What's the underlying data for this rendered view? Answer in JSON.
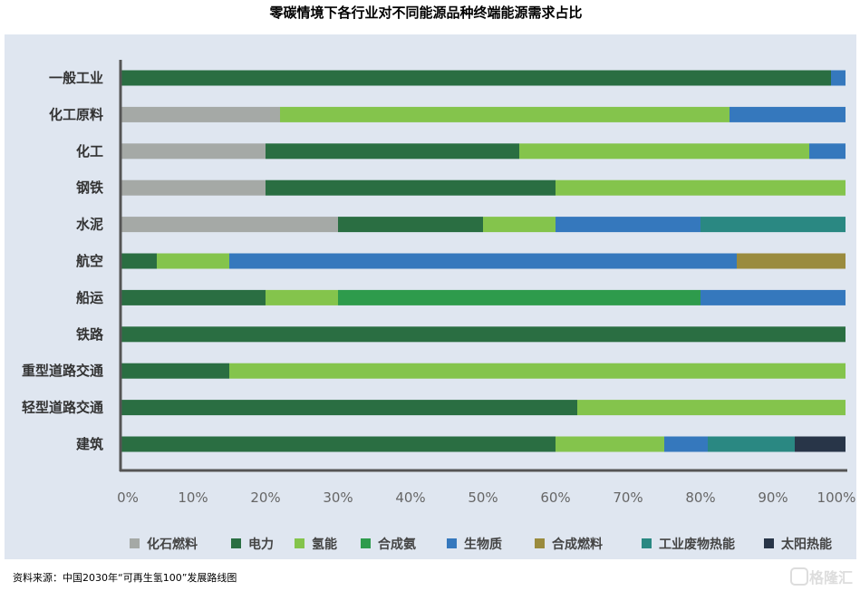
{
  "chart_data": {
    "type": "bar",
    "orientation": "horizontal-stacked-100",
    "title": "零碳情境下各行业对不同能源品种终端能源需求占比",
    "categories": [
      "一般工业",
      "化工原料",
      "化工",
      "钢铁",
      "水泥",
      "航空",
      "船运",
      "铁路",
      "重型道路交通",
      "轻型道路交通",
      "建筑"
    ],
    "series": [
      {
        "name": "化石燃料",
        "color": "#a5a9a6",
        "values": [
          0,
          22,
          20,
          20,
          30,
          0,
          0,
          0,
          0,
          0,
          0
        ]
      },
      {
        "name": "电力",
        "color": "#2a6e42",
        "values": [
          98,
          0,
          35,
          40,
          20,
          5,
          20,
          100,
          15,
          63,
          60
        ]
      },
      {
        "name": "氢能",
        "color": "#84c44c",
        "values": [
          0,
          62,
          40,
          40,
          10,
          10,
          10,
          0,
          85,
          37,
          15
        ]
      },
      {
        "name": "合成氨",
        "color": "#2e9b4c",
        "values": [
          0,
          0,
          0,
          0,
          0,
          0,
          50,
          0,
          0,
          0,
          0
        ]
      },
      {
        "name": "生物质",
        "color": "#3578bd",
        "values": [
          2,
          16,
          5,
          0,
          20,
          70,
          20,
          0,
          0,
          0,
          6
        ]
      },
      {
        "name": "合成燃料",
        "color": "#9a8b3e",
        "values": [
          0,
          0,
          0,
          0,
          0,
          15,
          0,
          0,
          0,
          0,
          0
        ]
      },
      {
        "name": "工业废物热能",
        "color": "#2a8882",
        "values": [
          0,
          0,
          0,
          0,
          20,
          0,
          0,
          0,
          0,
          0,
          12
        ]
      },
      {
        "name": "太阳热能",
        "color": "#283548",
        "values": [
          0,
          0,
          0,
          0,
          0,
          0,
          0,
          0,
          0,
          0,
          7
        ]
      }
    ],
    "xlim": [
      0,
      100
    ],
    "xticks": [
      "0%",
      "10%",
      "20%",
      "30%",
      "40%",
      "50%",
      "60%",
      "70%",
      "80%",
      "90%",
      "100%"
    ],
    "legend_position": "bottom",
    "grid": false
  },
  "source": "资料来源：中国2030年“可再生氢100”发展路线图",
  "watermark": "格隆汇"
}
